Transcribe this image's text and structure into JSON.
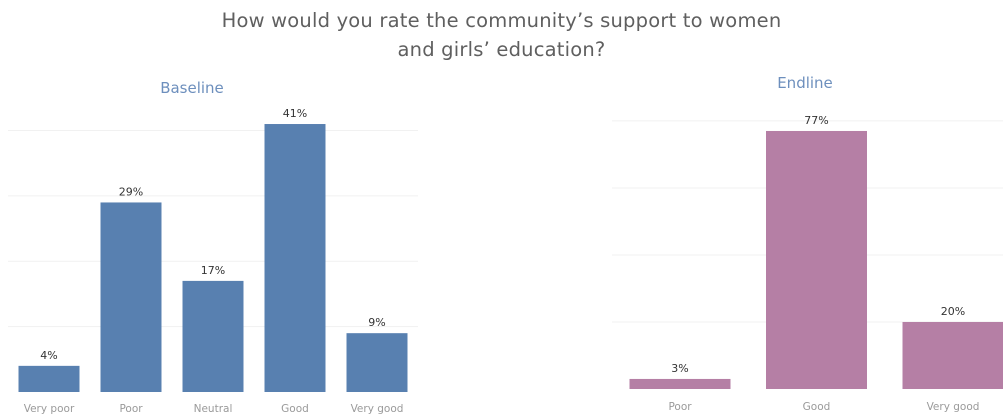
{
  "title_lines": [
    "How would you rate the community’s support to women",
    "and girls’ education?"
  ],
  "chart_data": [
    {
      "type": "bar",
      "title": "Baseline",
      "color": "#5880b0",
      "title_color": "#6d8fbd",
      "categories": [
        "Very poor",
        "Poor",
        "Neutral",
        "Good",
        "Very good"
      ],
      "values": [
        4,
        29,
        17,
        41,
        9
      ],
      "data_labels": [
        "4%",
        "29%",
        "17%",
        "41%",
        "9%"
      ],
      "ylim": [
        0,
        45
      ],
      "grid": true
    },
    {
      "type": "bar",
      "title": "Endline",
      "color": "#b57fa5",
      "title_color": "#6d8fbd",
      "categories": [
        "Poor",
        "Good",
        "Very good"
      ],
      "values": [
        3,
        77,
        20
      ],
      "data_labels": [
        "3%",
        "77%",
        "20%"
      ],
      "ylim": [
        0,
        80
      ],
      "grid": true
    }
  ]
}
